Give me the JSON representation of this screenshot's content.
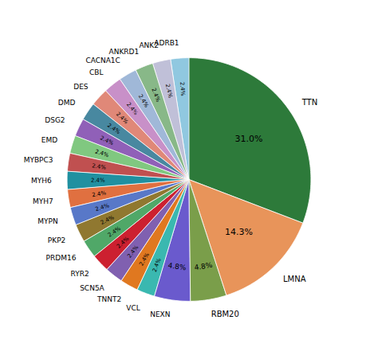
{
  "chart_data": {
    "type": "pie",
    "categories": [
      "TTN",
      "LMNA",
      "RBM20",
      "NEXN",
      "VCL",
      "TNNT2",
      "SCN5A",
      "RYR2",
      "PRDM16",
      "PKP2",
      "MYPN",
      "MYH7",
      "MYH6",
      "MYBPC3",
      "EMD",
      "DSG2",
      "DMD",
      "DES",
      "CBL",
      "CACNA1C",
      "ANKRD1",
      "ANK2",
      "ADRB1"
    ],
    "values": [
      31.0,
      14.3,
      4.8,
      4.8,
      2.4,
      2.4,
      2.4,
      2.4,
      2.4,
      2.4,
      2.4,
      2.4,
      2.4,
      2.4,
      2.4,
      2.4,
      2.4,
      2.4,
      2.4,
      2.4,
      2.4,
      2.4,
      2.4
    ],
    "value_labels": [
      "31.0%",
      "14.3%",
      "4.8%",
      "4.8%",
      "2.4%",
      "2.4%",
      "2.4%",
      "2.4%",
      "2.4%",
      "2.4%",
      "2.4%",
      "2.4%",
      "2.4%",
      "2.4%",
      "2.4%",
      "2.4%",
      "2.4%",
      "2.4%",
      "2.4%",
      "2.4%",
      "2.4%",
      "2.4%",
      "2.4%"
    ],
    "colors": [
      "#2d7a3a",
      "#e8945a",
      "#7a9e4a",
      "#6a5acd",
      "#3ab8b0",
      "#e07820",
      "#8060b0",
      "#cc2030",
      "#50a868",
      "#907830",
      "#5878c8",
      "#e07040",
      "#2090a0",
      "#c05050",
      "#80c880",
      "#9060b8",
      "#4888a0",
      "#e08878",
      "#c890c8",
      "#a0b8d8",
      "#88b888",
      "#c0c0d8",
      "#90c8e0"
    ],
    "data_labels": true
  }
}
